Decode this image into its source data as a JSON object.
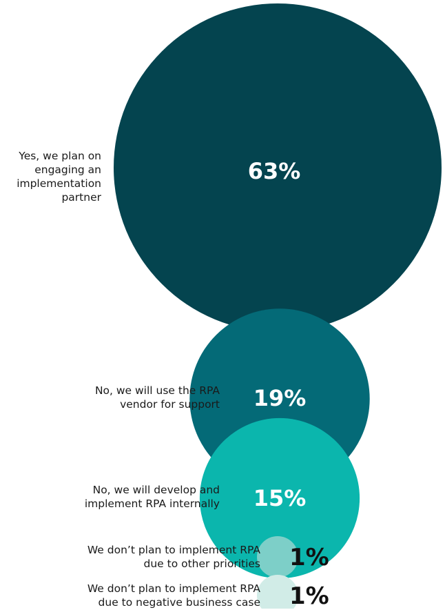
{
  "chart_data": {
    "type": "bubble",
    "series": [
      {
        "label": "Yes, we plan on\nengaging an\nimplementation\npartner",
        "value": 63,
        "value_label": "63%",
        "color": "#04444f"
      },
      {
        "label": "No, we will use the RPA\nvendor for support",
        "value": 19,
        "value_label": "19%",
        "color": "#046a77"
      },
      {
        "label": "No, we will develop and\nimplement RPA internally",
        "value": 15,
        "value_label": "15%",
        "color": "#0bb6ad"
      },
      {
        "label": "We don’t plan to implement RPA\ndue to other priorities",
        "value": 1,
        "value_label": "1%",
        "color": "#7dcfc8"
      },
      {
        "label": "We don’t plan to implement RPA\ndue to negative business case",
        "value": 1,
        "value_label": "1%",
        "color": "#d1ece7"
      }
    ]
  }
}
